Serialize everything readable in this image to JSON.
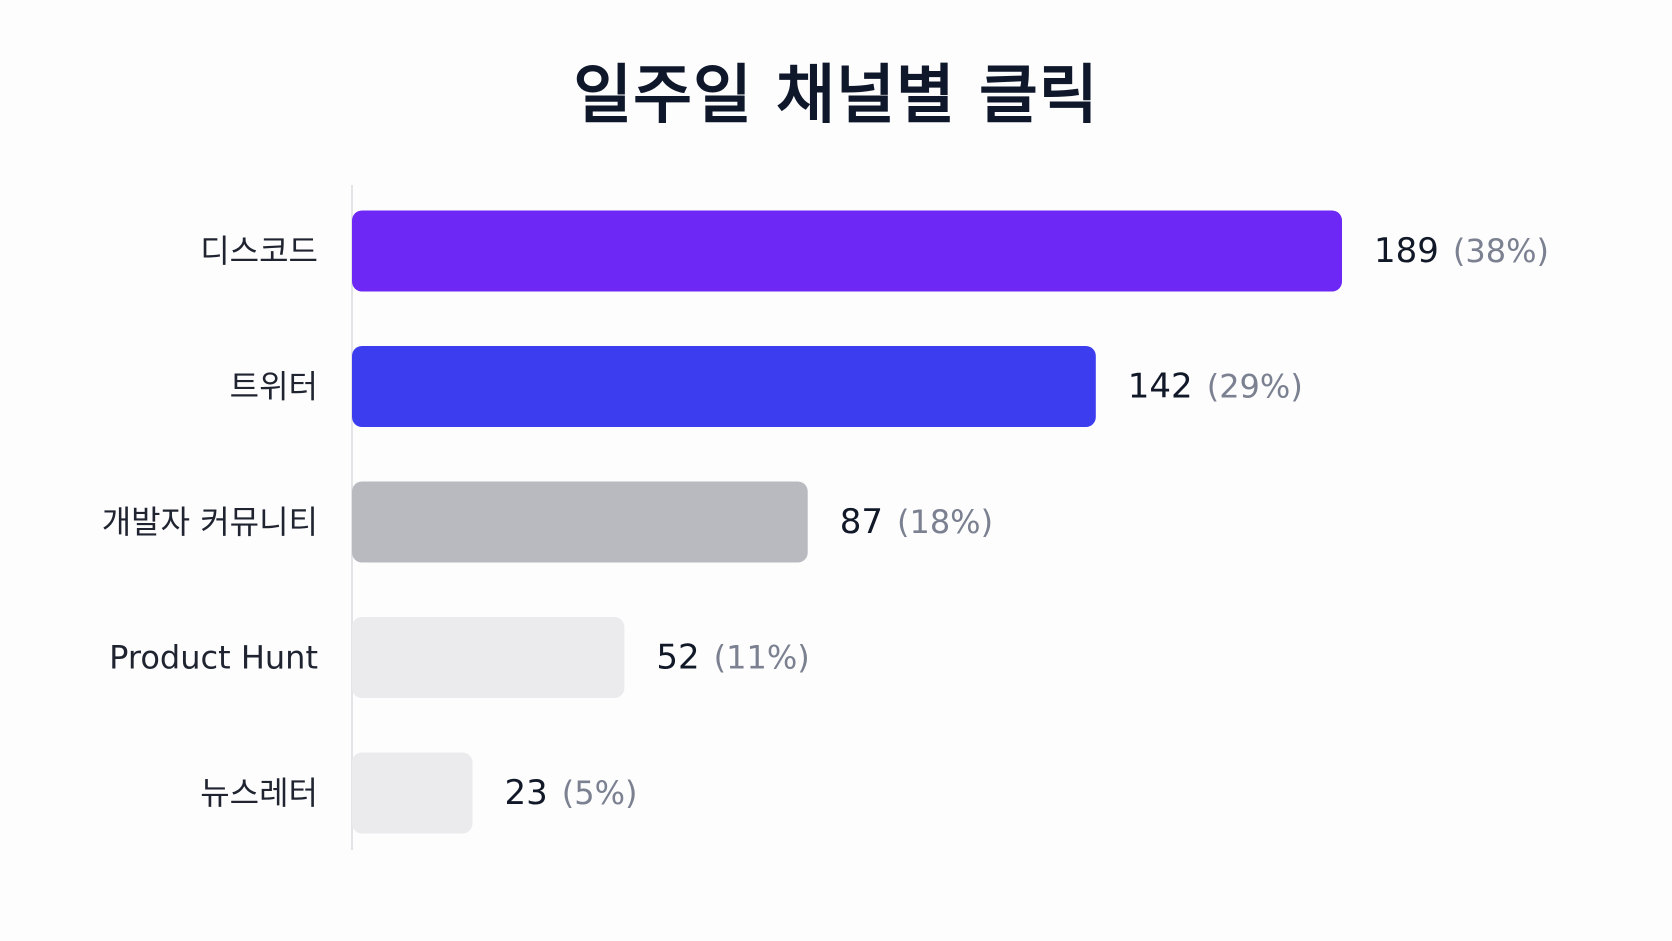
{
  "chart_data": {
    "type": "bar",
    "orientation": "horizontal",
    "title": "일주일 채널별 클릭",
    "categories": [
      "디스코드",
      "트위터",
      "개발자 커뮤니티",
      "Product Hunt",
      "뉴스레터"
    ],
    "values": [
      189,
      142,
      87,
      52,
      23
    ],
    "percent_labels": [
      "(38%)",
      "(29%)",
      "(18%)",
      "(11%)",
      "(5%)"
    ],
    "colors": [
      "#6d28f5",
      "#3d3df0",
      "#b9babf",
      "#ebebed",
      "#ebebed"
    ],
    "xlim": [
      0,
      189
    ],
    "grid": false,
    "legend": "none"
  }
}
